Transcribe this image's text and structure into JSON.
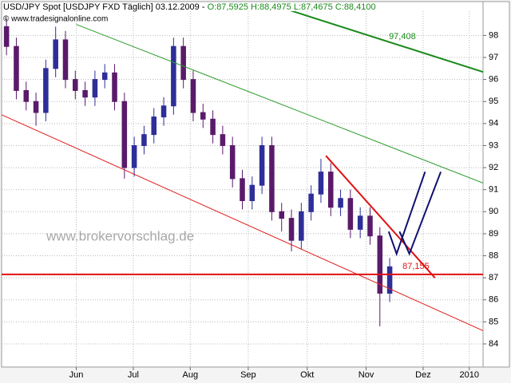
{
  "chart_data": {
    "type": "candlestick",
    "title": "USD/JPY Spot [USDJPY FXD  Täglich] 03.12.2009 -",
    "subtitle": "O:87,5925 H:88,4975 L:87,4675 C:88,4100",
    "copyright": "© www.tradesignalonline.com",
    "watermark": "www.brokervorschlag.de",
    "up_color": "#2e2e9a",
    "down_color": "#5a1a6a",
    "xlim": [
      0,
      49
    ],
    "ylim": [
      82.95,
      99.1
    ],
    "grid": true,
    "yticks": [
      84,
      85,
      86,
      87,
      88,
      89,
      90,
      91,
      92,
      93,
      94,
      95,
      96,
      97,
      98
    ],
    "xticks": [
      {
        "value": 7.6,
        "label": "Jun"
      },
      {
        "value": 13.4,
        "label": "Jul"
      },
      {
        "value": 19.2,
        "label": "Aug"
      },
      {
        "value": 25.1,
        "label": "Sep"
      },
      {
        "value": 31.1,
        "label": "Okt"
      },
      {
        "value": 37.1,
        "label": "Nov"
      },
      {
        "value": 42.9,
        "label": "Dez"
      },
      {
        "value": 47.6,
        "label": "2010"
      }
    ],
    "open": [
      98.4,
      97.5,
      95.5,
      95.0,
      94.5,
      96.5,
      97.8,
      96.0,
      95.5,
      95.2,
      96.0,
      96.3,
      95.0,
      92.0,
      93.0,
      93.5,
      94.3,
      94.8,
      97.5,
      96.0,
      94.5,
      94.2,
      93.5,
      93.0,
      91.5,
      90.5,
      91.2,
      93.0,
      90.0,
      89.7,
      88.7,
      90.0,
      90.8,
      91.8,
      90.2,
      90.6,
      89.2,
      89.8,
      88.9,
      86.3
    ],
    "high": [
      98.8,
      97.9,
      95.9,
      95.4,
      96.9,
      98.4,
      98.2,
      96.4,
      95.9,
      96.4,
      96.7,
      96.7,
      95.4,
      93.4,
      93.9,
      94.7,
      95.2,
      97.9,
      97.9,
      96.4,
      94.9,
      94.6,
      93.9,
      93.4,
      91.9,
      91.6,
      93.4,
      93.4,
      90.4,
      90.1,
      90.4,
      91.2,
      92.4,
      92.2,
      91.0,
      91.0,
      90.2,
      90.2,
      89.3,
      87.9
    ],
    "low": [
      97.1,
      95.1,
      94.6,
      93.9,
      94.1,
      96.1,
      95.6,
      95.1,
      94.8,
      94.8,
      95.6,
      94.6,
      91.5,
      91.6,
      92.6,
      93.1,
      93.9,
      94.4,
      95.6,
      94.1,
      93.8,
      93.1,
      92.6,
      91.1,
      90.1,
      90.1,
      90.8,
      89.6,
      89.1,
      88.2,
      88.3,
      89.6,
      90.4,
      89.8,
      89.8,
      88.8,
      88.8,
      88.5,
      84.8,
      85.9
    ],
    "close": [
      97.5,
      95.5,
      95.0,
      94.5,
      96.5,
      97.8,
      96.0,
      95.5,
      95.2,
      96.0,
      96.3,
      95.0,
      92.0,
      93.0,
      93.5,
      94.3,
      94.8,
      97.5,
      96.0,
      94.5,
      94.2,
      93.5,
      93.0,
      91.5,
      90.5,
      91.2,
      93.0,
      90.0,
      89.7,
      88.7,
      90.0,
      90.8,
      91.8,
      90.2,
      90.6,
      89.2,
      89.8,
      88.9,
      86.3,
      87.5
    ],
    "lines": [
      {
        "x": [
          7.6,
          49
        ],
        "y": [
          98.5,
          91.3
        ],
        "color": "#2a9a2a",
        "width": 1
      },
      {
        "x": [
          0,
          49
        ],
        "y": [
          94.4,
          84.6
        ],
        "color": "#e02020",
        "width": 1
      },
      {
        "x": [
          28.7,
          49
        ],
        "y": [
          99.23,
          96.34
        ],
        "color": "#1a8a1a",
        "width": 2,
        "label": "97,408"
      },
      {
        "x": [
          33,
          44.1
        ],
        "y": [
          92.54,
          87.0
        ],
        "color": "#e01010",
        "width": 2
      },
      {
        "x": [
          39.4,
          40.2,
          43.1
        ],
        "y": [
          89.1,
          88.09,
          91.81
        ],
        "color": "#101070",
        "width": 2
      },
      {
        "x": [
          40.5,
          41.5,
          44.7
        ],
        "y": [
          89.1,
          88.09,
          91.81
        ],
        "color": "#101070",
        "width": 2
      }
    ],
    "hlines": [
      {
        "value": 87.155,
        "label": "87,155",
        "color": "#e01010",
        "width": 2
      }
    ]
  }
}
